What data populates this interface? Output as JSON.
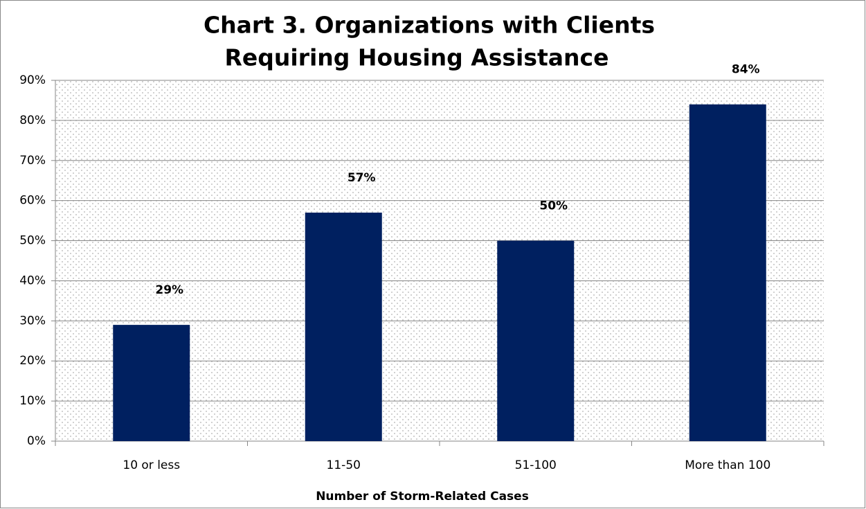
{
  "chart_data": {
    "type": "bar",
    "title": [
      "Chart 3. Organizations with Clients",
      "Requiring Housing Assistance"
    ],
    "x_label": "Number of Storm-Related Cases",
    "categories": [
      "10 or less",
      "11-50",
      "51-100",
      "More than 100"
    ],
    "values": [
      29,
      57,
      50,
      84
    ],
    "value_labels": [
      "29%",
      "57%",
      "50%",
      "84%"
    ],
    "color": "#002060",
    "ylim": [
      0,
      90
    ],
    "yticks": [
      {
        "value": 0,
        "label": "0%"
      },
      {
        "value": 10,
        "label": "10%"
      },
      {
        "value": 20,
        "label": "20%"
      },
      {
        "value": 30,
        "label": "30%"
      },
      {
        "value": 40,
        "label": "40%"
      },
      {
        "value": 50,
        "label": "50%"
      },
      {
        "value": 60,
        "label": "60%"
      },
      {
        "value": 70,
        "label": "70%"
      },
      {
        "value": 80,
        "label": "80%"
      },
      {
        "value": 90,
        "label": "90%"
      }
    ],
    "grid": true
  }
}
